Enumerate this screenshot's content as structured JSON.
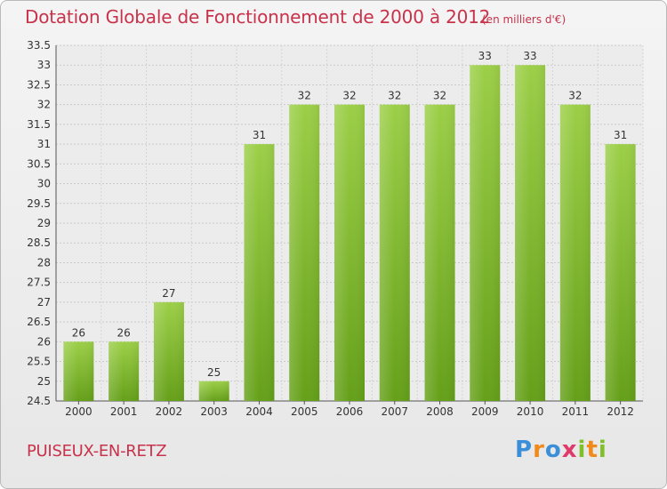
{
  "title": "Dotation Globale de Fonctionnement de 2000 à 2012",
  "unit_note": "(en milliers d'€)",
  "commune": "PUISEUX-EN-RETZ",
  "logo_text": "Proxiti",
  "colors": {
    "bar": "#7fba2e",
    "title": "#c8324b"
  },
  "chart_data": {
    "type": "bar",
    "title": "Dotation Globale de Fonctionnement de 2000 à 2012",
    "xlabel": "",
    "ylabel": "",
    "categories": [
      "2000",
      "2001",
      "2002",
      "2003",
      "2004",
      "2005",
      "2006",
      "2007",
      "2008",
      "2009",
      "2010",
      "2011",
      "2012"
    ],
    "values": [
      26,
      26,
      27,
      25,
      31,
      32,
      32,
      32,
      32,
      33,
      33,
      32,
      31
    ],
    "ylim": [
      24.5,
      33.5
    ],
    "yticks": [
      "24.5",
      "25",
      "25.5",
      "26",
      "26.5",
      "27",
      "27.5",
      "28",
      "28.5",
      "29",
      "29.5",
      "30",
      "30.5",
      "31",
      "31.5",
      "32",
      "32.5",
      "33",
      "33.5"
    ],
    "grid": true
  }
}
